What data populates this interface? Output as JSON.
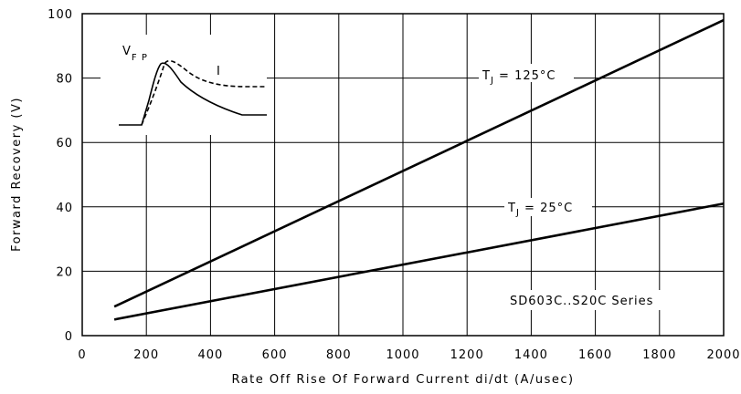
{
  "chart_data": {
    "type": "line",
    "xlabel": "Rate Off Rise Of Forward Current di/dt (A/usec)",
    "ylabel": "Forward Recovery (V)",
    "xlim": [
      0,
      2000
    ],
    "ylim": [
      0,
      100
    ],
    "x_ticks": [
      "0",
      "200",
      "400",
      "600",
      "800",
      "1000",
      "1200",
      "1400",
      "1600",
      "1800",
      "2000"
    ],
    "y_ticks": [
      "0",
      "20",
      "40",
      "60",
      "80",
      "100"
    ],
    "grid": true,
    "series": [
      {
        "label_prefix": "T",
        "label_sub": "J",
        "label_suffix": " = 125°C",
        "x": [
          100,
          2000
        ],
        "y": [
          9,
          98
        ]
      },
      {
        "label_prefix": "T",
        "label_sub": "J",
        "label_suffix": " = 25°C",
        "x": [
          100,
          2000
        ],
        "y": [
          5,
          41
        ]
      }
    ],
    "annotation": "SD603C..S20C Series",
    "inset": {
      "vfp_main": "V",
      "vfp_sub": "F P",
      "current_label": "I"
    }
  }
}
